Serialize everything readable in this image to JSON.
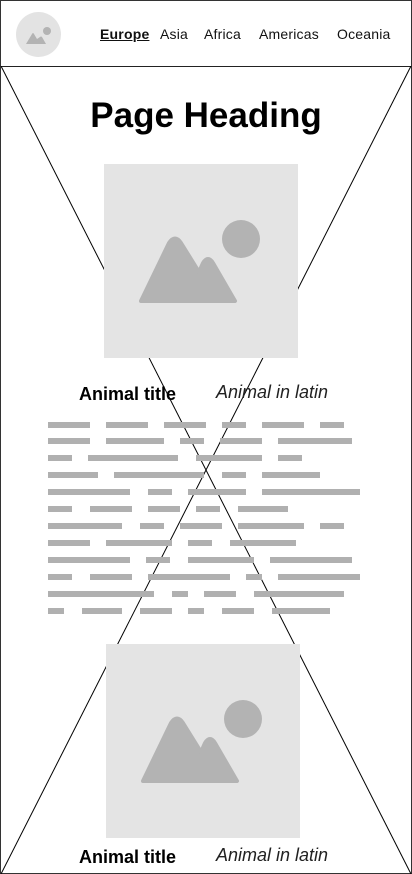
{
  "header": {
    "logo_icon": "image-placeholder-icon",
    "nav": [
      {
        "label": "Europe",
        "active": true
      },
      {
        "label": "Asia",
        "active": false
      },
      {
        "label": "Africa",
        "active": false
      },
      {
        "label": "Americas",
        "active": false
      },
      {
        "label": "Oceania",
        "active": false
      }
    ]
  },
  "main": {
    "heading": "Page Heading",
    "cards": [
      {
        "image_icon": "image-placeholder-icon",
        "title": "Animal title",
        "latin": "Animal in latin"
      },
      {
        "image_icon": "image-placeholder-icon",
        "title": "Animal title",
        "latin": "Animal in latin"
      }
    ]
  },
  "colors": {
    "placeholder_bg": "#e4e4e4",
    "placeholder_icon": "#b3b3b3",
    "text_placeholder": "#b0b0b0",
    "border": "#333333"
  }
}
